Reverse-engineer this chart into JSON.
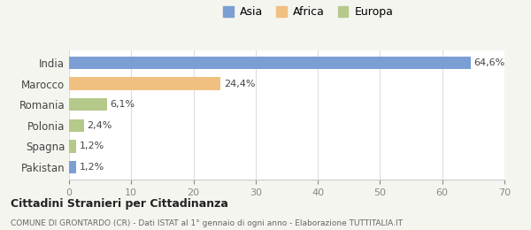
{
  "categories": [
    "India",
    "Marocco",
    "Romania",
    "Polonia",
    "Spagna",
    "Pakistan"
  ],
  "values": [
    64.6,
    24.4,
    6.1,
    2.4,
    1.2,
    1.2
  ],
  "labels": [
    "64,6%",
    "24,4%",
    "6,1%",
    "2,4%",
    "1,2%",
    "1,2%"
  ],
  "colors": [
    "#7b9fd4",
    "#f0c080",
    "#b5c98a",
    "#b5c98a",
    "#b5c98a",
    "#7b9fd4"
  ],
  "legend": [
    {
      "label": "Asia",
      "color": "#7b9fd4"
    },
    {
      "label": "Africa",
      "color": "#f0c080"
    },
    {
      "label": "Europa",
      "color": "#b5c98a"
    }
  ],
  "xlim": [
    0,
    70
  ],
  "xticks": [
    0,
    10,
    20,
    30,
    40,
    50,
    60,
    70
  ],
  "title": "Cittadini Stranieri per Cittadinanza",
  "subtitle": "COMUNE DI GRONTARDO (CR) - Dati ISTAT al 1° gennaio di ogni anno - Elaborazione TUTTITALIA.IT",
  "background_color": "#f5f5f0",
  "bar_background": "#ffffff"
}
